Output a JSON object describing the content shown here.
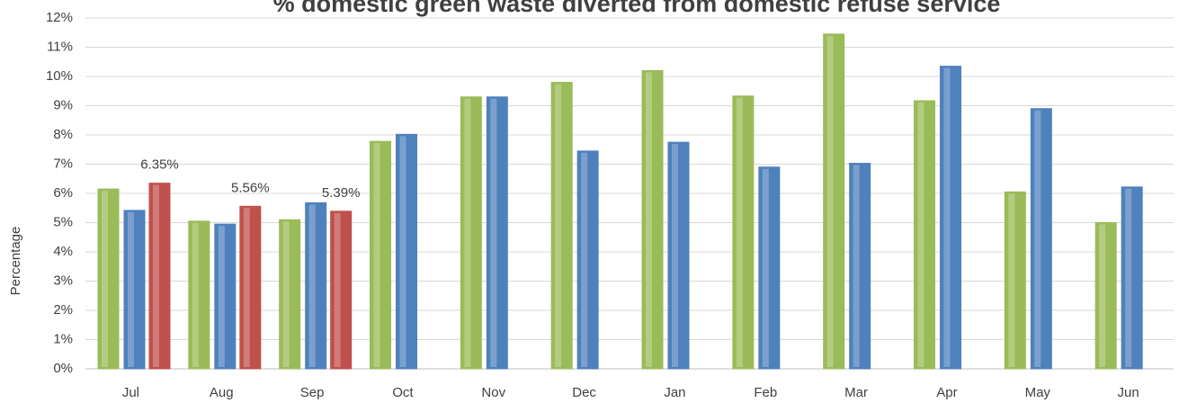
{
  "chart_data": {
    "type": "bar",
    "title": "% domestic green waste diverted from domestic refuse service",
    "y_label": "Percentage",
    "categories": [
      "Jul",
      "Aug",
      "Sep",
      "Oct",
      "Nov",
      "Dec",
      "Jan",
      "Feb",
      "Mar",
      "Apr",
      "May",
      "Jun"
    ],
    "series": [
      {
        "color": "#9bbb59",
        "values": [
          6.15,
          5.05,
          5.1,
          7.78,
          9.3,
          9.8,
          10.2,
          9.33,
          11.45,
          9.17,
          6.05,
          5.0
        ]
      },
      {
        "color": "#4f81bd",
        "values": [
          5.42,
          4.95,
          5.68,
          8.02,
          9.3,
          7.45,
          7.75,
          6.9,
          7.03,
          10.35,
          8.9,
          6.22
        ]
      },
      {
        "color": "#c0504d",
        "values": [
          6.35,
          5.56,
          5.39,
          null,
          null,
          null,
          null,
          null,
          null,
          null,
          null,
          null
        ],
        "value_labels": [
          "6.35%",
          "5.56%",
          "5.39%",
          null,
          null,
          null,
          null,
          null,
          null,
          null,
          null,
          null
        ]
      }
    ],
    "ylim": [
      0,
      12
    ],
    "yticks": [
      {
        "value": 0,
        "label": "0%"
      },
      {
        "value": 1,
        "label": "1%"
      },
      {
        "value": 2,
        "label": "2%"
      },
      {
        "value": 3,
        "label": "3%"
      },
      {
        "value": 4,
        "label": "4%"
      },
      {
        "value": 5,
        "label": "5%"
      },
      {
        "value": 6,
        "label": "6%"
      },
      {
        "value": 7,
        "label": "7%"
      },
      {
        "value": 8,
        "label": "8%"
      },
      {
        "value": 9,
        "label": "9%"
      },
      {
        "value": 10,
        "label": "10%"
      },
      {
        "value": 11,
        "label": "11%"
      },
      {
        "value": 12,
        "label": "12%"
      }
    ],
    "grid": true
  }
}
